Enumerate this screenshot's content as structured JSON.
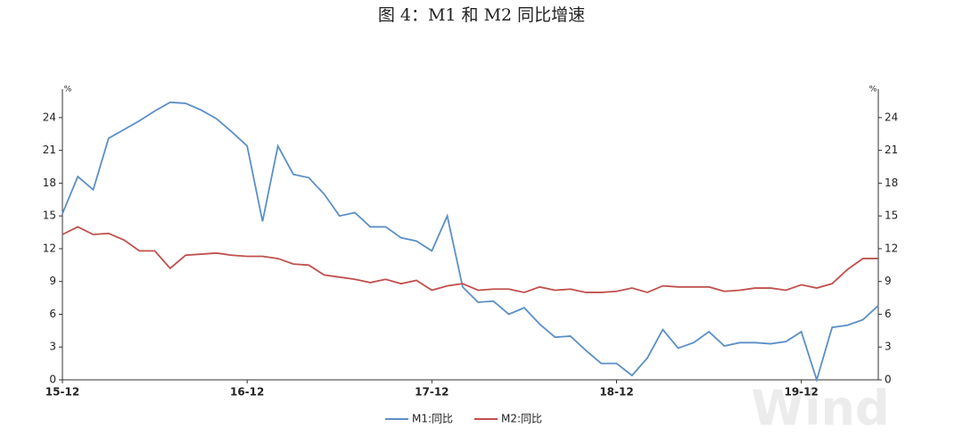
{
  "chart_data": {
    "type": "line",
    "title": "图 4：M1 和 M2 同比增速",
    "categories": [
      "15-12",
      null,
      null,
      null,
      null,
      null,
      null,
      null,
      null,
      null,
      null,
      null,
      "16-12",
      null,
      null,
      null,
      null,
      null,
      null,
      null,
      null,
      null,
      null,
      null,
      "17-12",
      null,
      null,
      null,
      null,
      null,
      null,
      null,
      null,
      null,
      null,
      null,
      "18-12",
      null,
      null,
      null,
      null,
      null,
      null,
      null,
      null,
      null,
      null,
      null,
      "19-12",
      null,
      null,
      null,
      null,
      null
    ],
    "series": [
      {
        "name": "M1:同比",
        "color": "#5b8fc7",
        "values": [
          15.2,
          18.6,
          17.4,
          22.1,
          22.9,
          23.7,
          24.6,
          25.4,
          25.3,
          24.7,
          23.9,
          22.7,
          21.4,
          14.5,
          21.4,
          18.8,
          18.5,
          17.0,
          15.0,
          15.3,
          14.0,
          14.0,
          13.0,
          12.7,
          11.8,
          15.0,
          8.5,
          7.1,
          7.2,
          6.0,
          6.6,
          5.1,
          3.9,
          4.0,
          2.7,
          1.5,
          1.5,
          0.4,
          2.0,
          4.6,
          2.9,
          3.4,
          4.4,
          3.1,
          3.4,
          3.4,
          3.3,
          3.5,
          4.4,
          0.0,
          4.8,
          5.0,
          5.5,
          6.8
        ]
      },
      {
        "name": "M2:同比",
        "color": "#c0504d",
        "values": [
          13.3,
          14.0,
          13.3,
          13.4,
          12.8,
          11.8,
          11.8,
          10.2,
          11.4,
          11.5,
          11.6,
          11.4,
          11.3,
          11.3,
          11.1,
          10.6,
          10.5,
          9.6,
          9.4,
          9.2,
          8.9,
          9.2,
          8.8,
          9.1,
          8.2,
          8.6,
          8.8,
          8.2,
          8.3,
          8.3,
          8.0,
          8.5,
          8.2,
          8.3,
          8.0,
          8.0,
          8.1,
          8.4,
          8.0,
          8.6,
          8.5,
          8.5,
          8.5,
          8.1,
          8.2,
          8.4,
          8.4,
          8.2,
          8.7,
          8.4,
          8.8,
          10.1,
          11.1,
          11.1
        ]
      }
    ],
    "y_unit": "%",
    "y2_unit": "%",
    "ylim": [
      0,
      26.6
    ],
    "yticks": [
      0,
      3,
      6,
      9,
      12,
      15,
      18,
      21,
      24
    ],
    "y2lim": [
      0,
      26.6
    ],
    "y2ticks": [
      0,
      3,
      6,
      9,
      12,
      15,
      18,
      21,
      24
    ],
    "watermark": "Wind"
  }
}
